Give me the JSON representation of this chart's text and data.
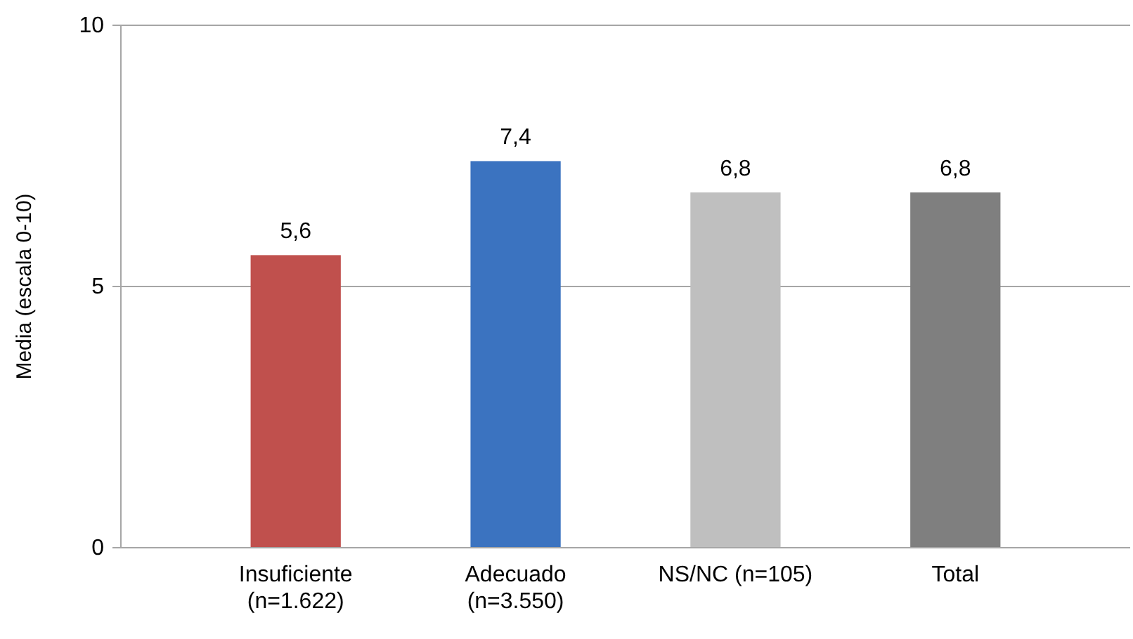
{
  "chart_data": {
    "type": "bar",
    "ylabel": "Media (escala 0-10)",
    "categories": [
      "Insuficiente\n(n=1.622)",
      "Adecuado\n(n=3.550)",
      "NS/NC (n=105)",
      "Total"
    ],
    "values": [
      5.6,
      7.4,
      6.8,
      6.8
    ],
    "colors": [
      "#c0504d",
      "#3b73c0",
      "#bfbfbf",
      "#7f7f7f"
    ],
    "value_labels": [
      "5,6",
      "7,4",
      "6,8",
      "6,8"
    ],
    "ylim": [
      0,
      10
    ],
    "yticks": [
      0,
      5,
      10
    ],
    "grid": "y"
  }
}
